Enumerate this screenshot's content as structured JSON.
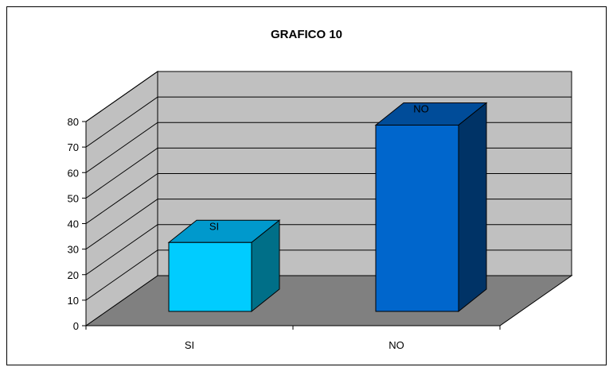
{
  "chart_data": {
    "type": "bar",
    "title": "GRAFICO 10",
    "categories": [
      "SI",
      "NO"
    ],
    "values": [
      27,
      73
    ],
    "data_labels": [
      "SI",
      "NO"
    ],
    "ylim": [
      0,
      80
    ],
    "yticks": [
      0,
      10,
      20,
      30,
      40,
      50,
      60,
      70,
      80
    ],
    "grid": true,
    "legend": "none",
    "colors": {
      "wall": "#c0c0c0",
      "floor": "#808080",
      "bars": [
        {
          "front": "#00ccff",
          "top": "#0099cc",
          "side": "#006f88"
        },
        {
          "front": "#0066cc",
          "top": "#004c99",
          "side": "#003366"
        }
      ]
    }
  }
}
